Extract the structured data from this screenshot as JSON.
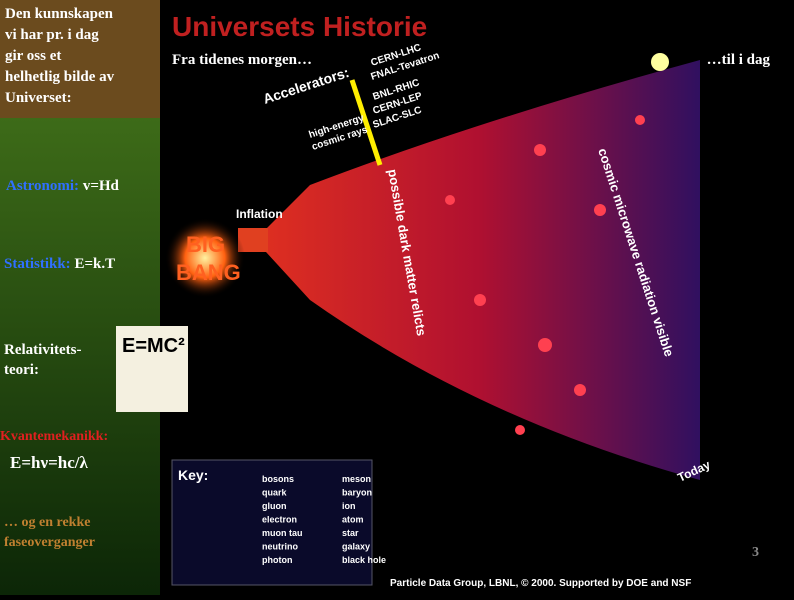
{
  "left": {
    "intro": [
      "Den kunnskapen",
      "vi har  pr. i dag",
      "gir oss et",
      "helhetlig bilde av",
      "Universet:"
    ],
    "astronomy": {
      "label": "Astronomi:",
      "formula": "v=Hd"
    },
    "statistics": {
      "label": "Statistikk:",
      "formula": "E=k.T"
    },
    "relativity": [
      "Relativitets-",
      "teori:"
    ],
    "cartoon": "E=MC²",
    "quantum": {
      "label": "Kvantemekanikk:",
      "formula": "E=hν=hc/λ"
    },
    "phases": [
      "… og en rekke",
      "faseoverganger"
    ]
  },
  "image": {
    "title": "Universets Historie",
    "start": "Fra tidenes morgen…",
    "end": "…til i dag",
    "accelerators": "Accelerators:",
    "machines": [
      "CERN-LHC",
      "FNAL-Tevatron",
      "BNL-RHIC",
      "CERN-LEP",
      "SLAC-SLC"
    ],
    "cosmic_rays": [
      "high-energy",
      "cosmic rays"
    ],
    "inflation": "Inflation",
    "big_bang": [
      "BIG",
      "BANG"
    ],
    "dark_matter": "possible dark matter relicts",
    "cmb": "cosmic microwave radiation visible",
    "today": "Today",
    "key": {
      "title": "Key:",
      "items": [
        "bosons",
        "quark",
        "gluon",
        "electron",
        "muon tau",
        "neutrino",
        "photon",
        "meson",
        "baryon",
        "ion",
        "atom",
        "star",
        "galaxy",
        "black hole"
      ]
    },
    "credit": "Particle Data Group, LBNL, © 2000.   Supported by DOE and NSF"
  },
  "page_number": "3"
}
